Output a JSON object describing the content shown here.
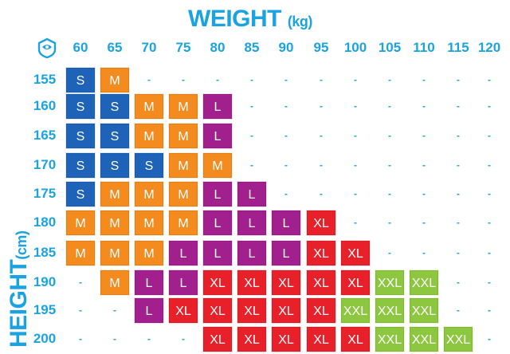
{
  "chart_data": {
    "type": "table",
    "title": "WEIGHT",
    "title_unit": "(kg)",
    "ylabel": "HEIGHT",
    "ylabel_unit": "(cm)",
    "weights": [
      "60",
      "65",
      "70",
      "75",
      "80",
      "85",
      "90",
      "95",
      "100",
      "105",
      "110",
      "115",
      "120"
    ],
    "heights": [
      "155",
      "160",
      "165",
      "170",
      "175",
      "180",
      "185",
      "190",
      "195",
      "200"
    ],
    "sizes": [
      [
        "S",
        "M",
        "-",
        "-",
        "-",
        "-",
        "-",
        "-",
        "-",
        "-",
        "-",
        "-",
        "-"
      ],
      [
        "S",
        "S",
        "M",
        "M",
        "L",
        "-",
        "-",
        "-",
        "-",
        "-",
        "-",
        "-",
        "-"
      ],
      [
        "S",
        "S",
        "M",
        "M",
        "L",
        "-",
        "-",
        "-",
        "-",
        "-",
        "-",
        "-",
        "-"
      ],
      [
        "S",
        "S",
        "S",
        "M",
        "M",
        "-",
        "-",
        "-",
        "-",
        "-",
        "-",
        "-",
        "-"
      ],
      [
        "S",
        "M",
        "M",
        "M",
        "L",
        "L",
        "-",
        "-",
        "-",
        "-",
        "-",
        "-",
        "-"
      ],
      [
        "M",
        "M",
        "M",
        "M",
        "L",
        "L",
        "L",
        "XL",
        "-",
        "-",
        "-",
        "-",
        "-"
      ],
      [
        "M",
        "M",
        "M",
        "L",
        "L",
        "L",
        "L",
        "XL",
        "XL",
        "-",
        "-",
        "-",
        "-"
      ],
      [
        "-",
        "M",
        "L",
        "L",
        "XL",
        "XL",
        "XL",
        "XL",
        "XL",
        "XXL",
        "XXL",
        "-",
        "-"
      ],
      [
        "-",
        "-",
        "L",
        "XL",
        "XL",
        "XL",
        "XL",
        "XL",
        "XXL",
        "XXL",
        "XXL",
        "-",
        "-"
      ],
      [
        "-",
        "-",
        "-",
        "-",
        "XL",
        "XL",
        "XL",
        "XL",
        "XL",
        "XXL",
        "XXL",
        "XXL",
        "-"
      ]
    ],
    "colors": {
      "S": "#1f63b8",
      "M": "#f38b1f",
      "L": "#a1208e",
      "XL": "#e8202a",
      "XXL": "#8dc63f",
      "text": "#1aa3e0"
    }
  }
}
